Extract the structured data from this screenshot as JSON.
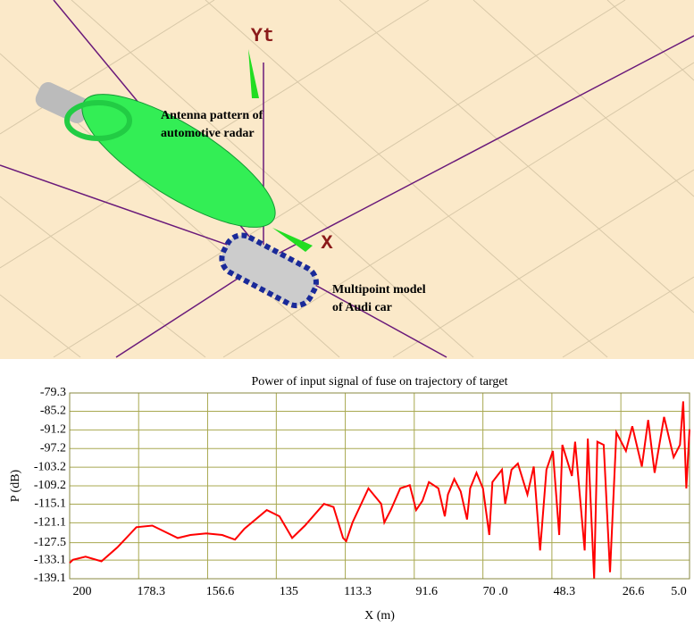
{
  "scene": {
    "axis_y_label": "Yt",
    "axis_x_label": "X",
    "antenna_label": [
      "Antenna pattern of",
      "automotive radar"
    ],
    "car_label": [
      "Multipoint model",
      "of Audi car"
    ]
  },
  "chart_data": {
    "type": "line",
    "title": "Power of input signal of fuse on trajectory of target",
    "x_label": "X (m)",
    "y_label": "P (dB)",
    "color": "#ff0000",
    "grid": true,
    "xlim": [
      200,
      5
    ],
    "ylim": [
      -139.1,
      -79.3
    ],
    "xticks": [
      200,
      178.3,
      156.6,
      135,
      113.3,
      91.6,
      {
        "value": 70,
        "label": "70 .0"
      },
      48.3,
      26.6,
      {
        "value": 5,
        "label": "5.0"
      }
    ],
    "yticks": [
      -79.3,
      -85.2,
      -91.2,
      -97.2,
      -103.2,
      -109.2,
      -115.1,
      -121.1,
      -127.5,
      -133.1,
      -139.1
    ],
    "x": [
      200,
      199,
      195,
      190,
      185,
      179,
      174,
      170,
      166,
      162,
      157,
      152,
      148,
      145,
      138,
      134,
      130,
      126,
      120,
      117,
      114,
      113,
      111,
      106,
      102,
      101,
      99,
      96,
      93,
      91,
      89,
      87,
      84,
      82,
      81,
      79,
      77,
      75,
      74,
      72,
      70,
      68,
      67,
      64,
      63,
      61,
      59,
      56,
      54,
      52,
      50,
      48,
      46,
      45,
      42,
      41,
      38,
      37,
      35,
      34,
      32,
      30,
      28,
      25,
      23,
      20,
      18,
      16,
      13,
      10,
      8,
      7,
      6,
      5
    ],
    "values": [
      -134,
      -133,
      -132,
      -133.5,
      -129,
      -122.5,
      -122,
      -124,
      -126,
      -125,
      -124.5,
      -125,
      -126.5,
      -123,
      -117,
      -119,
      -126,
      -122,
      -115,
      -116,
      -126,
      -127,
      -121,
      -110,
      -115,
      -121,
      -117,
      -110,
      -109,
      -117,
      -114,
      -108,
      -110,
      -119,
      -112,
      -107,
      -111,
      -120,
      -110,
      -105,
      -110,
      -125,
      -108,
      -104,
      -115,
      -104,
      -102,
      -112,
      -103,
      -130,
      -104,
      -98,
      -125,
      -96,
      -106,
      -95,
      -130,
      -94,
      -139,
      -95,
      -96,
      -137,
      -92,
      -98,
      -90,
      -103,
      -88,
      -105,
      -87,
      -100,
      -96,
      -82,
      -110,
      -91
    ]
  }
}
